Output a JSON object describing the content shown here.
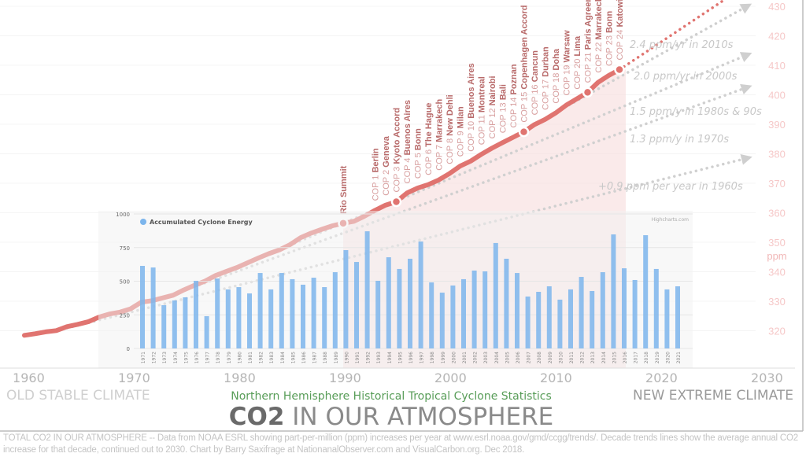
{
  "chart_data": [
    {
      "type": "line",
      "title": "CO2 IN OUR ATMOSPHERE",
      "title_bold_part": "CO2",
      "title_rest": " IN OUR ATMOSPHERE",
      "y_unit_label": "ppm",
      "x_ticks": [
        1960,
        1970,
        1980,
        1990,
        2000,
        2010,
        2020,
        2030
      ],
      "y_ticks": [
        320,
        330,
        340,
        350,
        360,
        370,
        380,
        390,
        400,
        410,
        420,
        430
      ],
      "xlim": [
        1960,
        2030
      ],
      "ylim": [
        315,
        432
      ],
      "y_axis_side": "right",
      "line_color": "#e07470",
      "series": [
        {
          "x": [
            1962,
            1963,
            1964,
            1965,
            1966,
            1967,
            1968,
            1969,
            1970,
            1971,
            1972,
            1973,
            1974,
            1975,
            1976,
            1977,
            1978,
            1979,
            1980,
            1981,
            1982,
            1983,
            1984,
            1985,
            1986,
            1987,
            1988,
            1989,
            1990,
            1991,
            1992,
            1993,
            1994,
            1995,
            1996,
            1997,
            1998,
            1999,
            2000,
            2001,
            2002,
            2003,
            2004,
            2005,
            2006,
            2007,
            2008,
            2009,
            2010,
            2011,
            2012,
            2013,
            2014,
            2015,
            2016,
            2017,
            2018
          ],
          "y": [
            318.45,
            318.99,
            319.62,
            320.04,
            321.38,
            322.16,
            323.04,
            324.62,
            325.68,
            326.32,
            327.45,
            329.68,
            330.18,
            331.11,
            332.04,
            333.83,
            335.4,
            336.84,
            338.75,
            340.11,
            341.45,
            343.05,
            344.65,
            346.12,
            347.42,
            349.19,
            351.57,
            353.12,
            354.39,
            355.61,
            356.45,
            357.1,
            358.83,
            360.82,
            362.61,
            363.73,
            366.7,
            368.38,
            369.55,
            371.14,
            373.28,
            375.8,
            377.52,
            379.8,
            381.9,
            383.79,
            385.6,
            387.43,
            389.9,
            391.65,
            393.85,
            396.52,
            398.65,
            400.83,
            404.24,
            406.55,
            408.52
          ]
        }
      ],
      "highlight_markers": [
        1992,
        1997,
        2009,
        2015,
        2018
      ],
      "trend_lines": [
        {
          "label": "+0.9 ppm per year in 1960s",
          "from": [
            1965,
            320
          ],
          "to": [
            2030,
            378.5
          ],
          "color": "#d0d0d0"
        },
        {
          "label": "1.3 ppm/y in 1970s",
          "from": [
            1975,
            331
          ],
          "to": [
            2030,
            402.5
          ],
          "color": "#d0d0d0"
        },
        {
          "label": "1.5 ppm/y in 1980s & 90s",
          "from": [
            1985,
            346
          ],
          "to": [
            2030,
            413.5
          ],
          "color": "#d0d0d0"
        },
        {
          "label": "2.0 ppm/yr in 2000s",
          "from": [
            2005,
            380
          ],
          "to": [
            2030,
            430
          ],
          "color": "#cfcfcf"
        },
        {
          "label": "2.4 ppm/yr in 2010s",
          "from": [
            2018,
            408.5
          ],
          "to": [
            2030,
            437.3
          ],
          "color": "#e07470"
        }
      ],
      "events": [
        {
          "num": "",
          "name": "Rio Summit",
          "year": 1992
        },
        {
          "num": "COP 1",
          "name": "Berlin",
          "year": 1995
        },
        {
          "num": "COP 2",
          "name": "Geneva",
          "year": 1996
        },
        {
          "num": "COP 3",
          "name": "Kyoto Accord",
          "year": 1997
        },
        {
          "num": "COP 4",
          "name": "Buenos Aires",
          "year": 1998
        },
        {
          "num": "COP 5",
          "name": "Bonn",
          "year": 1999
        },
        {
          "num": "COP 6",
          "name": "The Hague",
          "year": 2000
        },
        {
          "num": "COP 7",
          "name": "Marrakech",
          "year": 2001
        },
        {
          "num": "COP 8",
          "name": "New Dehli",
          "year": 2002
        },
        {
          "num": "COP 9",
          "name": "Milan",
          "year": 2003
        },
        {
          "num": "COP 10",
          "name": "Buenos Aires",
          "year": 2004
        },
        {
          "num": "COP 11",
          "name": "Montreal",
          "year": 2005
        },
        {
          "num": "COP 12",
          "name": "Nairobi",
          "year": 2006
        },
        {
          "num": "COP 13",
          "name": "Bali",
          "year": 2007
        },
        {
          "num": "COP 14",
          "name": "Poznan",
          "year": 2008
        },
        {
          "num": "COP 15",
          "name": "Copenhagen Accord",
          "year": 2009
        },
        {
          "num": "COP 16",
          "name": "Cancun",
          "year": 2010
        },
        {
          "num": "COP 17",
          "name": "Durban",
          "year": 2011
        },
        {
          "num": "COP 18",
          "name": "Doha",
          "year": 2012
        },
        {
          "num": "COP 19",
          "name": "Warsaw",
          "year": 2013
        },
        {
          "num": "COP 20",
          "name": "Lima",
          "year": 2014
        },
        {
          "num": "COP 21",
          "name": "Paris Agreement",
          "year": 2015
        },
        {
          "num": "COP 22",
          "name": "Marrakech",
          "year": 2016
        },
        {
          "num": "COP 23",
          "name": "Bonn",
          "year": 2017
        },
        {
          "num": "COP 24",
          "name": "Katowice",
          "year": 2018
        }
      ],
      "annotations": {
        "old": "OLD STABLE CLIMATE",
        "new": "NEW EXTREME CLIMATE"
      }
    },
    {
      "type": "bar",
      "title": "Northern Hemisphere Historical Tropical Cyclone Statistics",
      "legend": "Accumulated Cyclone Energy",
      "credit": "Highcharts.com",
      "bar_color": "#7cb5ec",
      "title_color": "#3c8c3c",
      "y_ticks": [
        0,
        250,
        500,
        750,
        1000
      ],
      "ylim": [
        0,
        1000
      ],
      "grid": true,
      "categories": [
        "1971",
        "1972",
        "1973",
        "1974",
        "1975",
        "1976",
        "1977",
        "1978",
        "1979",
        "1980",
        "1981",
        "1982",
        "1983",
        "1984",
        "1985",
        "1986",
        "1987",
        "1988",
        "1989",
        "1990",
        "1991",
        "1992",
        "1993",
        "1994",
        "1995",
        "1996",
        "1997",
        "1998",
        "1999",
        "2000",
        "2001",
        "2002",
        "2003",
        "2004",
        "2005",
        "2006",
        "2007",
        "2008",
        "2009",
        "2010",
        "2011",
        "2012",
        "2013",
        "2014",
        "2015",
        "2016",
        "2017",
        "2018",
        "2019",
        "2020",
        "2021"
      ],
      "values": [
        614,
        602,
        322,
        357,
        380,
        503,
        240,
        520,
        439,
        456,
        409,
        561,
        439,
        561,
        515,
        474,
        526,
        456,
        567,
        731,
        643,
        871,
        503,
        678,
        591,
        667,
        795,
        491,
        415,
        468,
        515,
        579,
        573,
        784,
        667,
        561,
        386,
        421,
        462,
        363,
        439,
        532,
        427,
        567,
        848,
        596,
        509,
        842,
        591,
        439,
        462
      ]
    }
  ],
  "caption": "TOTAL CO2 IN OUR ATMOSPHERE -- Data from NOAA ESRL showing part-per-million (ppm) increases per year at www.esrl.noaa.gov/gmd/ccgg/trends/. Decade trends lines show the average annual CO2 increase for that decade, continued out to 2030. Chart by Barry Saxifrage at NationanalObserver.com and VisualCarbon.org. Dec 2018."
}
